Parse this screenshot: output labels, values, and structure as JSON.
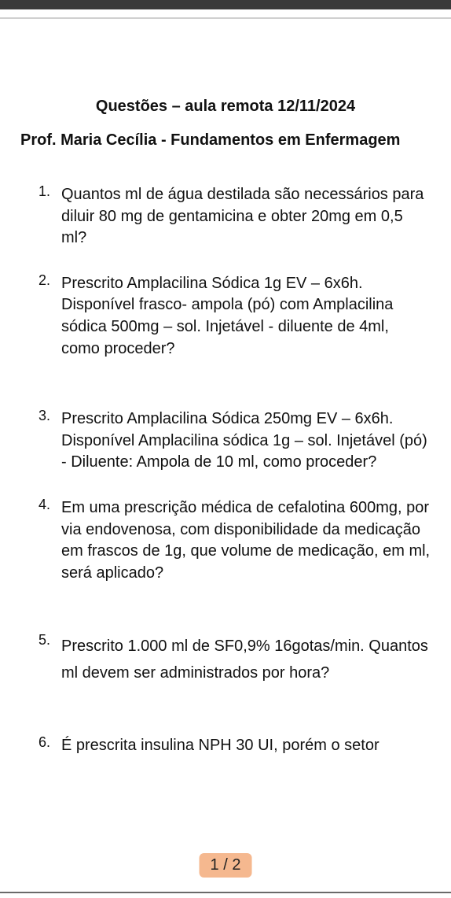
{
  "viewer": {
    "topbar_color": "#3a3a3a",
    "page_indicator": "1 / 2",
    "page_indicator_bg": "#f5b88f"
  },
  "doc": {
    "title": "Questões – aula remota 12/11/2024",
    "subtitle": "Prof. Maria Cecília -  Fundamentos em Enfermagem",
    "questions": [
      {
        "n": "1.",
        "text": "Quantos ml de água destilada são necessários para diluir 80 mg de gentamicina e obter 20mg em 0,5 ml?"
      },
      {
        "n": "2.",
        "text": "Prescrito Amplacilina Sódica 1g EV – 6x6h. Disponível frasco- ampola (pó) com Amplacilina sódica 500mg – sol. Injetável - diluente de 4ml, como proceder?"
      },
      {
        "n": "3.",
        "text": "Prescrito Amplacilina Sódica 250mg EV – 6x6h. Disponível Amplacilina sódica 1g – sol. Injetável (pó) - Diluente: Ampola de 10 ml, como proceder?"
      },
      {
        "n": "4.",
        "text": "Em uma prescrição médica de cefalotina 600mg, por via endovenosa, com disponibilidade da medicação em frascos de 1g, que volume de medicação, em ml, será aplicado?"
      },
      {
        "n": "5.",
        "text": "Prescrito 1.000 ml de SF0,9% 16gotas/min. Quantos ml devem ser administrados por hora?"
      },
      {
        "n": "6.",
        "text": "É prescrita insulina NPH 30 UI, porém o setor"
      }
    ]
  }
}
